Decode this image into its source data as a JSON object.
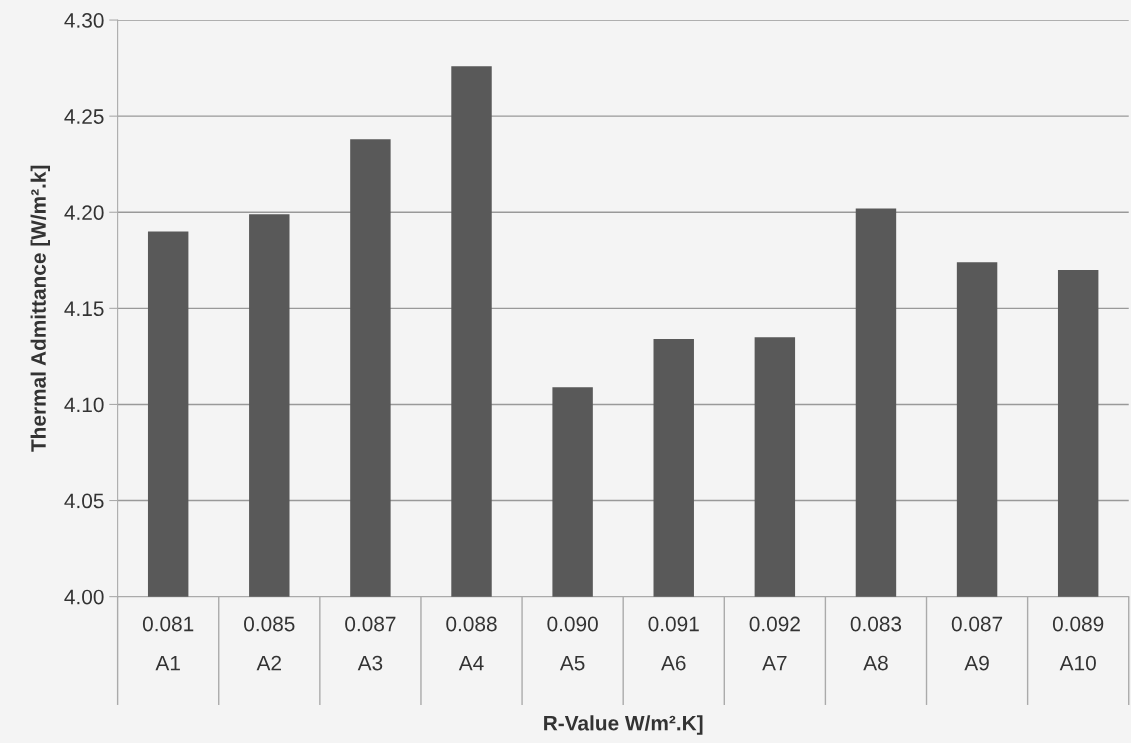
{
  "chart_data": {
    "type": "bar",
    "xlabel": "R-Value W/m².K]",
    "ylabel": "Thermal Admittance [W/m².k]",
    "categories": [
      "0.081\nA1",
      "0.085\nA2",
      "0.087\nA3",
      "0.088\nA4",
      "0.090\nA5",
      "0.091\nA6",
      "0.092\nA7",
      "0.083\nA8",
      "0.087\nA9",
      "0.089\nA10"
    ],
    "values": [
      4.19,
      4.199,
      4.238,
      4.276,
      4.109,
      4.134,
      4.135,
      4.202,
      4.174,
      4.17
    ],
    "color": "#595959",
    "ylim": [
      4.0,
      4.3
    ],
    "yticks": [
      {
        "value": 4.0,
        "label": "4.00"
      },
      {
        "value": 4.05,
        "label": "4.05"
      },
      {
        "value": 4.1,
        "label": "4.10"
      },
      {
        "value": 4.15,
        "label": "4.15"
      },
      {
        "value": 4.2,
        "label": "4.20"
      },
      {
        "value": 4.25,
        "label": "4.25"
      },
      {
        "value": 4.3,
        "label": "4.30"
      }
    ],
    "grid": "y"
  }
}
